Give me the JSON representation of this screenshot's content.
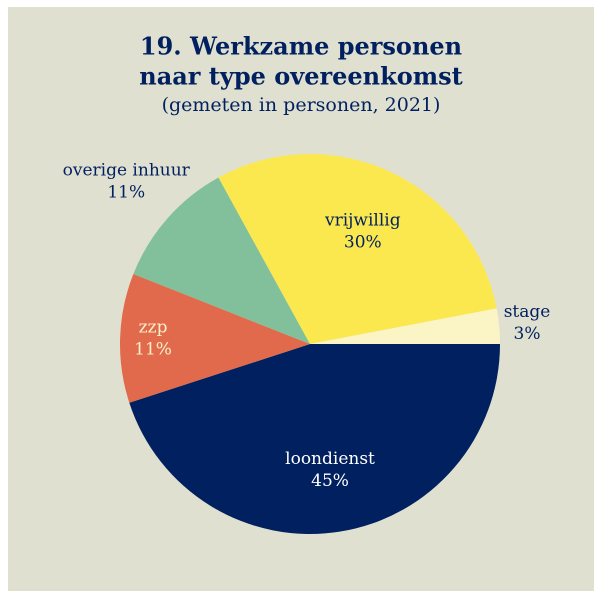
{
  "chart_data": {
    "type": "pie",
    "title": [
      "19. Werkzame personen",
      "naar type overeenkomst"
    ],
    "subtitle": "(gemeten in personen, 2021)",
    "categories": [
      "loondienst",
      "zzp",
      "overige inhuur",
      "vrijwillig",
      "stage"
    ],
    "values": [
      45,
      11,
      11,
      30,
      3
    ],
    "value_labels": [
      "45%",
      "11%",
      "11%",
      "30%",
      "3%"
    ],
    "colors": [
      "#00205f",
      "#e06a4b",
      "#82c09b",
      "#fbe84f",
      "#fbf5c6"
    ]
  }
}
